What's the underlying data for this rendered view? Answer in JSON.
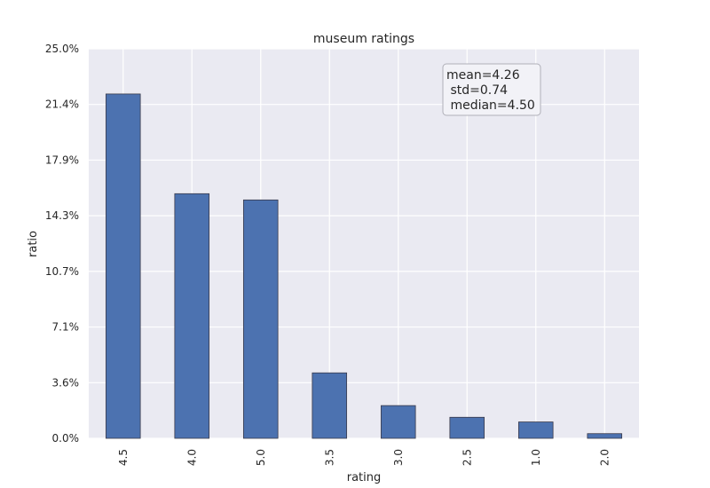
{
  "chart_data": {
    "type": "bar",
    "title": "museum ratings",
    "xlabel": "rating",
    "ylabel": "ratio",
    "categories": [
      "4.5",
      "4.0",
      "5.0",
      "3.5",
      "3.0",
      "2.5",
      "1.0",
      "2.0"
    ],
    "values": [
      22.1,
      15.7,
      15.3,
      4.2,
      2.1,
      1.35,
      1.05,
      0.3
    ],
    "ylim": [
      0,
      25.0
    ],
    "yticks": [
      "0.0%",
      "3.6%",
      "7.1%",
      "10.7%",
      "14.3%",
      "17.9%",
      "21.4%",
      "25.0%"
    ],
    "ytick_values": [
      0,
      3.571,
      7.143,
      10.714,
      14.286,
      17.857,
      21.429,
      25.0
    ],
    "grid": true,
    "bar_color": "#4c72b0",
    "background_color": "#eaeaf2",
    "stats_box": {
      "lines": [
        "mean=4.26",
        " std=0.74",
        " median=4.50"
      ]
    }
  }
}
